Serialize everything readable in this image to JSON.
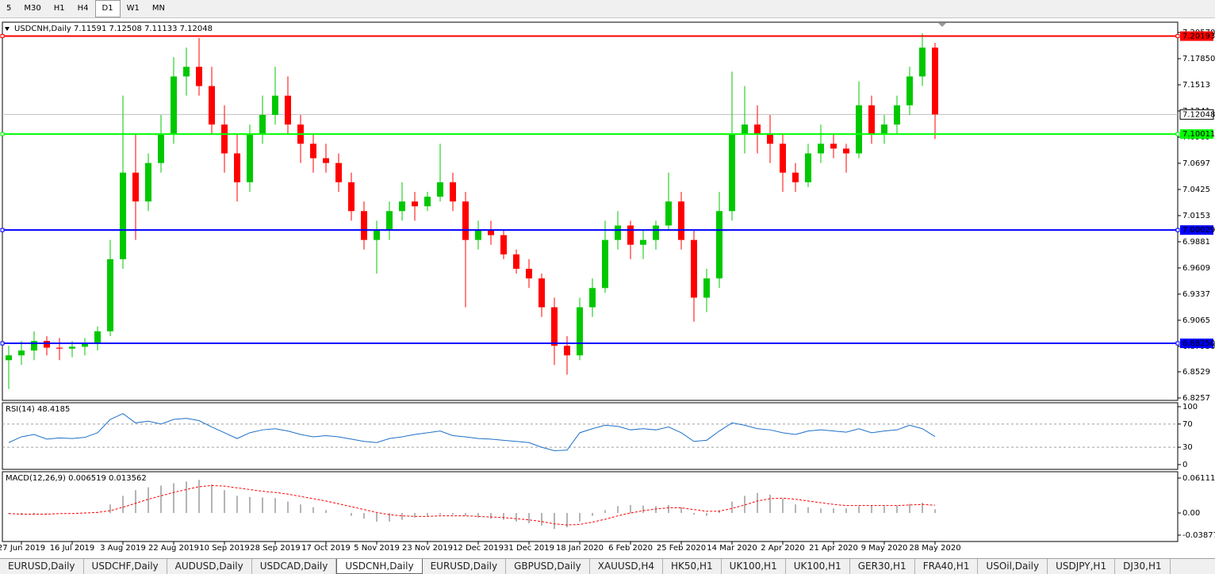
{
  "toolbar": {
    "timeframes": [
      "5",
      "M30",
      "H1",
      "H4",
      "D1",
      "W1",
      "MN"
    ],
    "active": "D1"
  },
  "chart_data": [
    {
      "type": "candlestick",
      "title": "USDCNH,Daily  7.11591 7.12508 7.11133 7.12048",
      "categories": [
        null,
        "27 Jun 2019",
        null,
        null,
        null,
        "16 Jul 2019",
        null,
        null,
        null,
        "3 Aug 2019",
        null,
        null,
        null,
        "22 Aug 2019",
        null,
        null,
        null,
        "10 Sep 2019",
        null,
        null,
        null,
        "28 Sep 2019",
        null,
        null,
        null,
        "17 Oct 2019",
        null,
        null,
        null,
        "5 Nov 2019",
        null,
        null,
        null,
        "23 Nov 2019",
        null,
        null,
        null,
        "12 Dec 2019",
        null,
        null,
        null,
        "31 Dec 2019",
        null,
        null,
        null,
        "18 Jan 2020",
        null,
        null,
        null,
        "6 Feb 2020",
        null,
        null,
        null,
        "25 Feb 2020",
        null,
        null,
        null,
        "14 Mar 2020",
        null,
        null,
        null,
        "2 Apr 2020",
        null,
        null,
        null,
        "21 Apr 2020",
        null,
        null,
        null,
        "9 May 2020",
        null,
        null,
        null,
        "28 May 2020"
      ],
      "ohlc": [
        [
          6.865,
          6.88,
          6.835,
          6.87
        ],
        [
          6.87,
          6.885,
          6.86,
          6.875
        ],
        [
          6.875,
          6.895,
          6.865,
          6.885
        ],
        [
          6.885,
          6.89,
          6.87,
          6.878
        ],
        [
          6.878,
          6.888,
          6.865,
          6.877
        ],
        [
          6.877,
          6.885,
          6.868,
          6.879
        ],
        [
          6.879,
          6.888,
          6.87,
          6.882
        ],
        [
          6.882,
          6.9,
          6.875,
          6.895
        ],
        [
          6.895,
          6.99,
          6.89,
          6.97
        ],
        [
          6.97,
          7.14,
          6.96,
          7.06
        ],
        [
          7.06,
          7.1,
          6.99,
          7.03
        ],
        [
          7.03,
          7.08,
          7.02,
          7.07
        ],
        [
          7.07,
          7.12,
          7.06,
          7.1
        ],
        [
          7.1,
          7.18,
          7.09,
          7.16
        ],
        [
          7.16,
          7.19,
          7.14,
          7.17
        ],
        [
          7.17,
          7.2,
          7.14,
          7.15
        ],
        [
          7.15,
          7.17,
          7.1,
          7.11
        ],
        [
          7.11,
          7.13,
          7.06,
          7.08
        ],
        [
          7.08,
          7.1,
          7.03,
          7.05
        ],
        [
          7.05,
          7.11,
          7.04,
          7.1
        ],
        [
          7.1,
          7.14,
          7.09,
          7.12
        ],
        [
          7.12,
          7.17,
          7.11,
          7.14
        ],
        [
          7.14,
          7.16,
          7.1,
          7.11
        ],
        [
          7.11,
          7.12,
          7.07,
          7.09
        ],
        [
          7.09,
          7.1,
          7.06,
          7.075
        ],
        [
          7.075,
          7.09,
          7.06,
          7.07
        ],
        [
          7.07,
          7.08,
          7.04,
          7.05
        ],
        [
          7.05,
          7.06,
          7.01,
          7.02
        ],
        [
          7.02,
          7.03,
          6.98,
          6.99
        ],
        [
          6.99,
          7.01,
          6.955,
          7.0
        ],
        [
          7.0,
          7.03,
          6.99,
          7.02
        ],
        [
          7.02,
          7.05,
          7.01,
          7.03
        ],
        [
          7.03,
          7.04,
          7.01,
          7.025
        ],
        [
          7.025,
          7.04,
          7.02,
          7.035
        ],
        [
          7.035,
          7.09,
          7.03,
          7.05
        ],
        [
          7.05,
          7.06,
          7.02,
          7.03
        ],
        [
          7.03,
          7.04,
          6.92,
          6.99
        ],
        [
          6.99,
          7.01,
          6.98,
          7.0
        ],
        [
          7.0,
          7.01,
          6.985,
          6.995
        ],
        [
          6.995,
          7.0,
          6.97,
          6.975
        ],
        [
          6.975,
          6.98,
          6.955,
          6.96
        ],
        [
          6.96,
          6.97,
          6.94,
          6.95
        ],
        [
          6.95,
          6.955,
          6.91,
          6.92
        ],
        [
          6.92,
          6.93,
          6.86,
          6.88
        ],
        [
          6.88,
          6.89,
          6.85,
          6.87
        ],
        [
          6.87,
          6.93,
          6.865,
          6.92
        ],
        [
          6.92,
          6.95,
          6.91,
          6.94
        ],
        [
          6.94,
          7.01,
          6.935,
          6.99
        ],
        [
          6.99,
          7.02,
          6.98,
          7.005
        ],
        [
          7.005,
          7.01,
          6.97,
          6.985
        ],
        [
          6.985,
          7.0,
          6.97,
          6.99
        ],
        [
          6.99,
          7.01,
          6.98,
          7.005
        ],
        [
          7.005,
          7.06,
          7.0,
          7.03
        ],
        [
          7.03,
          7.04,
          6.98,
          6.99
        ],
        [
          6.99,
          7.0,
          6.905,
          6.93
        ],
        [
          6.93,
          6.96,
          6.915,
          6.95
        ],
        [
          6.95,
          7.04,
          6.94,
          7.02
        ],
        [
          7.02,
          7.165,
          7.01,
          7.1
        ],
        [
          7.1,
          7.15,
          7.08,
          7.11
        ],
        [
          7.11,
          7.13,
          7.08,
          7.1
        ],
        [
          7.1,
          7.12,
          7.07,
          7.09
        ],
        [
          7.09,
          7.1,
          7.04,
          7.06
        ],
        [
          7.06,
          7.07,
          7.04,
          7.05
        ],
        [
          7.05,
          7.09,
          7.045,
          7.08
        ],
        [
          7.08,
          7.11,
          7.07,
          7.09
        ],
        [
          7.09,
          7.1,
          7.075,
          7.085
        ],
        [
          7.085,
          7.09,
          7.06,
          7.08
        ],
        [
          7.08,
          7.155,
          7.075,
          7.13
        ],
        [
          7.13,
          7.14,
          7.09,
          7.1
        ],
        [
          7.1,
          7.12,
          7.09,
          7.11
        ],
        [
          7.11,
          7.14,
          7.1,
          7.13
        ],
        [
          7.13,
          7.17,
          7.12,
          7.16
        ],
        [
          7.16,
          7.205,
          7.15,
          7.19
        ],
        [
          7.19,
          7.195,
          7.095,
          7.12048
        ]
      ],
      "up_color": "#00c800",
      "down_color": "#ff0000",
      "ylim": [
        6.8232,
        7.2164
      ],
      "yticks": [
        {
          "value": 7.2057,
          "label": "7.20570"
        },
        {
          "value": 7.1785,
          "label": "7.17850"
        },
        7.1513,
        7.1241,
        7.0969,
        7.0697,
        7.0425,
        7.0153,
        6.9881,
        6.9609,
        6.9337,
        6.9065,
        {
          "value": 6.8793,
          "label": "6.87930"
        },
        6.8529,
        6.8257
      ],
      "hlines": [
        {
          "value": 7.20193,
          "color": "#ff0000"
        },
        {
          "value": 7.10011,
          "color": "#00ff00"
        },
        {
          "value": 7.00029,
          "color": "#0000ff"
        },
        {
          "value": 6.8825,
          "label": "6.88250",
          "color": "#0000ff"
        }
      ],
      "price": 7.12048
    },
    {
      "type": "line",
      "title": "RSI(14) 48.4185",
      "color": "#1e70c8",
      "values": [
        38,
        48,
        52,
        44,
        46,
        45,
        47,
        55,
        78,
        88,
        72,
        75,
        70,
        78,
        80,
        76,
        65,
        55,
        45,
        55,
        60,
        62,
        58,
        52,
        48,
        50,
        48,
        44,
        40,
        38,
        45,
        48,
        52,
        55,
        58,
        50,
        48,
        45,
        44,
        42,
        40,
        38,
        30,
        24,
        25,
        55,
        62,
        68,
        66,
        60,
        62,
        60,
        65,
        55,
        40,
        42,
        58,
        72,
        68,
        62,
        60,
        55,
        52,
        58,
        60,
        58,
        56,
        62,
        55,
        58,
        60,
        68,
        62,
        48.4185
      ],
      "ylim": [
        -8.2,
        106.8
      ],
      "yticks": [
        100,
        70,
        30,
        0
      ],
      "levels": [
        70,
        30
      ]
    },
    {
      "type": "macd",
      "title": "MACD(12,26,9) 0.006519 0.013562",
      "color": "#b4b4b4",
      "signal_color": "#ff0000",
      "values": [
        -0.002,
        -0.003,
        -0.002,
        -0.001,
        0,
        0,
        0.001,
        0.002,
        0.015,
        0.03,
        0.04,
        0.045,
        0.048,
        0.052,
        0.055,
        0.058,
        0.05,
        0.04,
        0.03,
        0.028,
        0.027,
        0.026,
        0.02,
        0.015,
        0.01,
        0.005,
        0,
        -0.005,
        -0.01,
        -0.015,
        -0.015,
        -0.012,
        -0.008,
        -0.005,
        -0.003,
        -0.003,
        -0.005,
        -0.008,
        -0.01,
        -0.012,
        -0.015,
        -0.018,
        -0.022,
        -0.028,
        -0.025,
        -0.015,
        -0.005,
        0.005,
        0.012,
        0.014,
        0.013,
        0.012,
        0.014,
        0.01,
        -0.003,
        -0.005,
        0.005,
        0.02,
        0.03,
        0.035,
        0.032,
        0.025,
        0.015,
        0.01,
        0.008,
        0.008,
        0.008,
        0.012,
        0.013,
        0.012,
        0.013,
        0.016,
        0.018,
        0.006519
      ],
      "signal": [
        -0.001,
        -0.002,
        -0.002,
        -0.002,
        -0.001,
        -0.001,
        0,
        0.001,
        0.004,
        0.01,
        0.017,
        0.024,
        0.03,
        0.036,
        0.041,
        0.046,
        0.048,
        0.047,
        0.044,
        0.041,
        0.038,
        0.036,
        0.033,
        0.029,
        0.025,
        0.021,
        0.016,
        0.011,
        0.006,
        0.001,
        -0.003,
        -0.005,
        -0.006,
        -0.006,
        -0.005,
        -0.005,
        -0.005,
        -0.006,
        -0.007,
        -0.008,
        -0.01,
        -0.012,
        -0.015,
        -0.019,
        -0.021,
        -0.02,
        -0.016,
        -0.011,
        -0.005,
        0,
        0.004,
        0.007,
        0.009,
        0.009,
        0.006,
        0.003,
        0.003,
        0.008,
        0.014,
        0.021,
        0.025,
        0.026,
        0.024,
        0.021,
        0.018,
        0.015,
        0.013,
        0.013,
        0.013,
        0.013,
        0.013,
        0.014,
        0.015,
        0.013562
      ],
      "ylim": [
        -0.0499,
        0.0722
      ],
      "yticks": [
        0.061119,
        {
          "value": 0,
          "label": "0.00"
        },
        -0.038777
      ]
    }
  ],
  "tabs": [
    "EURUSD,Daily",
    "USDCHF,Daily",
    "AUDUSD,Daily",
    "USDCAD,Daily",
    "USDCNH,Daily",
    "EURUSD,Daily",
    "GBPUSD,Daily",
    "XAUUSD,H4",
    "HK50,H1",
    "UK100,H1",
    "UK100,H1",
    "GER30,H1",
    "FRA40,H1",
    "USOil,Daily",
    "USDJPY,H1",
    "DJ30,H1"
  ],
  "active_tab": "USDCNH,Daily"
}
